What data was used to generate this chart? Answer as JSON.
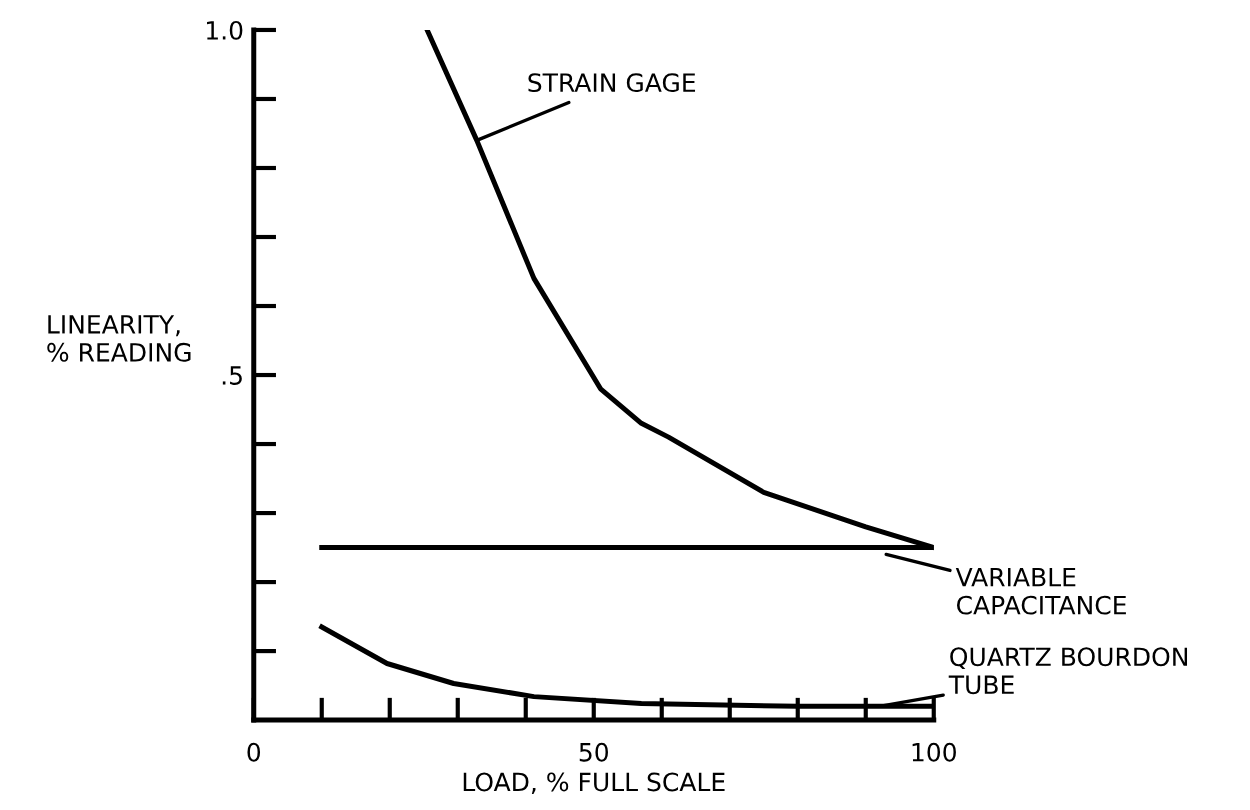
{
  "chart_data": {
    "type": "line",
    "xlabel": "LOAD, % FULL SCALE",
    "ylabel": "LINEARITY,\n% READING",
    "xlim": [
      0,
      100
    ],
    "ylim": [
      0,
      1.0
    ],
    "xticks": [
      0,
      {
        "value": 10,
        "label": null
      },
      {
        "value": 20,
        "label": null
      },
      {
        "value": 30,
        "label": null
      },
      {
        "value": 40,
        "label": null
      },
      50,
      {
        "value": 60,
        "label": null
      },
      {
        "value": 70,
        "label": null
      },
      {
        "value": 80,
        "label": null
      },
      {
        "value": 90,
        "label": null
      },
      100
    ],
    "yticks": [
      {
        "value": 0.1,
        "label": null
      },
      {
        "value": 0.2,
        "label": null
      },
      {
        "value": 0.3,
        "label": null
      },
      {
        "value": 0.4,
        "label": null
      },
      {
        "value": 0.5,
        "label": ".5"
      },
      {
        "value": 0.6,
        "label": null
      },
      {
        "value": 0.7,
        "label": null
      },
      {
        "value": 0.8,
        "label": null
      },
      {
        "value": 0.9,
        "label": null
      },
      {
        "value": 1.0,
        "label": "1.0"
      }
    ],
    "grid": false,
    "legend": false,
    "marker": "none",
    "line_style": "solid",
    "series": [
      {
        "color": "#000000",
        "x": [
          25.5,
          32.8,
          41.2,
          51,
          57,
          61,
          75,
          90,
          100
        ],
        "values": [
          1.0,
          0.84,
          0.64,
          0.48,
          0.43,
          0.41,
          0.33,
          0.28,
          0.25
        ]
      },
      {
        "color": "#000000",
        "x": [
          10,
          100
        ],
        "values": [
          0.25,
          0.25
        ]
      },
      {
        "color": "#000000",
        "x": [
          10,
          19.6,
          29.4,
          41.2,
          57,
          80,
          100
        ],
        "values": [
          0.135,
          0.082,
          0.053,
          0.034,
          0.024,
          0.02,
          0.02
        ]
      }
    ],
    "annotations": [
      {
        "text": "STRAIN GAGE",
        "x": 32.8,
        "y": 0.84
      },
      {
        "text": "VARIABLE\nCAPACITANCE",
        "x": 93,
        "y": 0.24
      },
      {
        "text": "QUARTZ BOURDON\nTUBE",
        "x": 92,
        "y": 0.02
      }
    ]
  }
}
